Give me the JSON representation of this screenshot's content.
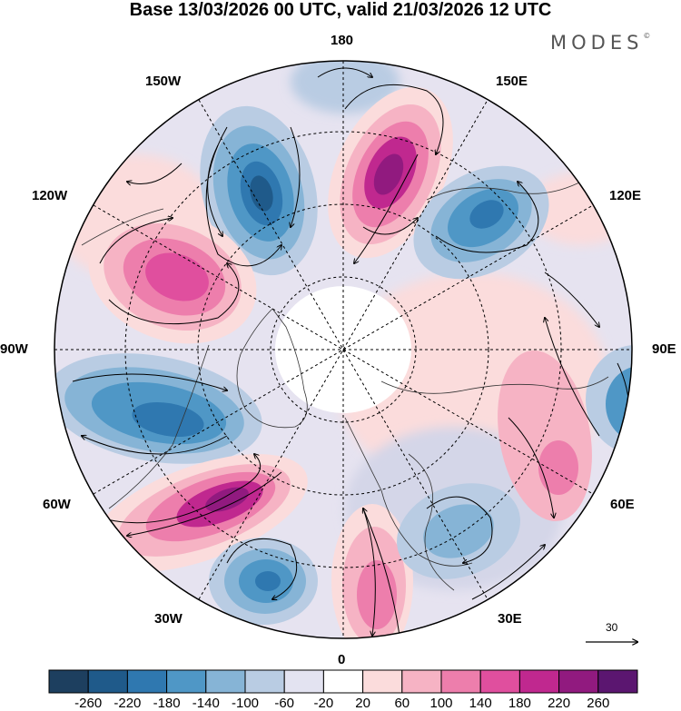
{
  "title": "Base 13/03/2026 00 UTC, valid 21/03/2026 12 UTC",
  "brand": "MODES",
  "brand_mark": "©",
  "meridian_labels": {
    "top": "180",
    "bottom": "0",
    "left": "90W",
    "right": "90E",
    "upper_left_1": "150W",
    "upper_left_2": "120W",
    "upper_right_1": "150E",
    "upper_right_2": "120E",
    "lower_left_1": "60W",
    "lower_left_2": "30W",
    "lower_right_1": "60E",
    "lower_right_2": "30E"
  },
  "reference_vector_label": "30",
  "colorbar": {
    "ticks": [
      "-260",
      "-220",
      "-180",
      "-140",
      "-100",
      "-60",
      "-20",
      "20",
      "60",
      "100",
      "140",
      "180",
      "220",
      "260"
    ],
    "colors": [
      "#1d3f5f",
      "#1f5a8a",
      "#2f78b0",
      "#4f97c6",
      "#86b4d6",
      "#b9cce3",
      "#e3e3f1",
      "#ffffff",
      "#fbdcdc",
      "#f6b3c4",
      "#ed7eac",
      "#e04f9e",
      "#c0288f",
      "#911a7f",
      "#5b1670"
    ]
  },
  "anomalies": [
    {
      "name": "trough-150w",
      "color": "#1f5a8a"
    },
    {
      "name": "ridge-160e",
      "color": "#911a7f"
    },
    {
      "name": "trough-130e",
      "color": "#2f78b0"
    },
    {
      "name": "ridge-105w",
      "color": "#e04f9e"
    },
    {
      "name": "trough-75w",
      "color": "#2f78b0"
    },
    {
      "name": "ridge-50w",
      "color": "#911a7f"
    },
    {
      "name": "trough-30w",
      "color": "#2f78b0"
    },
    {
      "name": "ridge-10e",
      "color": "#ed7eac"
    },
    {
      "name": "ridge-60e",
      "color": "#ed7eac"
    },
    {
      "name": "trough-35e",
      "color": "#86b4d6"
    },
    {
      "name": "trough-90e",
      "color": "#4f97c6"
    }
  ]
}
